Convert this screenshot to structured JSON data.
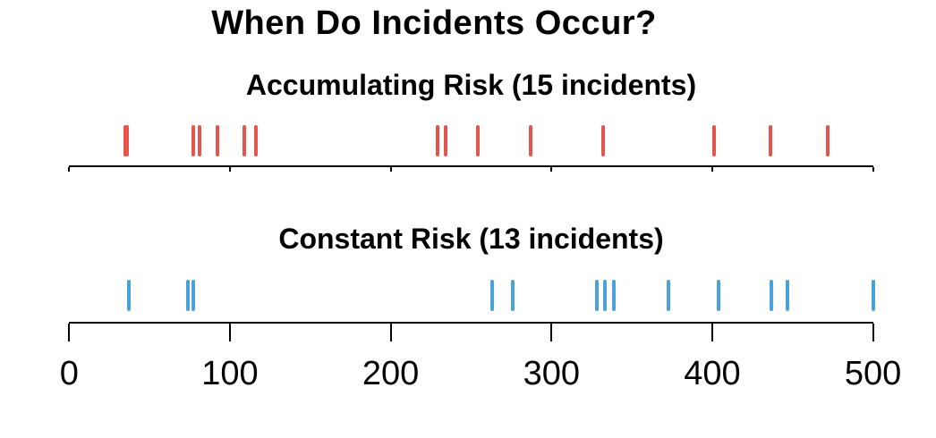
{
  "chart_data": {
    "type": "rug",
    "title": "When Do Incidents Occur?",
    "xlabel": "",
    "ylabel": "",
    "xlim": [
      0,
      500
    ],
    "x_ticks": [
      0,
      100,
      200,
      300,
      400,
      500
    ],
    "x_tick_labels": [
      "0",
      "100",
      "200",
      "300",
      "400",
      "500"
    ],
    "grid": false,
    "legend": "none",
    "panels": [
      {
        "label": "Accumulating Risk (15 incidents)",
        "color": "#E4564D",
        "values": [
          35,
          36,
          77,
          81,
          92,
          109,
          116,
          229,
          234,
          254,
          287,
          332,
          401,
          436,
          472
        ]
      },
      {
        "label": "Constant Risk (13 incidents)",
        "color": "#4BA1DA",
        "values": [
          37,
          74,
          77,
          263,
          276,
          328,
          333,
          339,
          373,
          404,
          437,
          447,
          500
        ]
      }
    ]
  },
  "colors": {
    "background": "#ffffff",
    "axis": "#000000",
    "text": "#000000",
    "accumulating_marks": "#E4564D",
    "constant_marks": "#4BA1DA"
  }
}
